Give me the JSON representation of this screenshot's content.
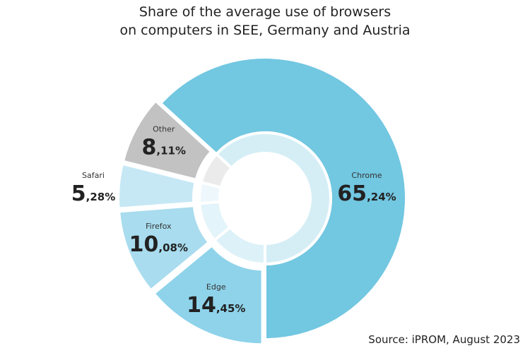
{
  "chart_data": {
    "type": "pie",
    "title_lines": [
      "Share of the average use of browsers",
      "on computers in SEE, Germany and Austria"
    ],
    "slices": [
      {
        "name": "Chrome",
        "value": 65.24,
        "int": "65",
        "dec": ",24%",
        "color": "#72c7e1",
        "inner_color": "#d5eef6"
      },
      {
        "name": "Edge",
        "value": 14.45,
        "int": "14",
        "dec": ",45%",
        "color": "#8ed3ea",
        "inner_color": "#ddf2f8"
      },
      {
        "name": "Firefox",
        "value": 10.08,
        "int": "10",
        "dec": ",08%",
        "color": "#a8dcee",
        "inner_color": "#e3f4fa"
      },
      {
        "name": "Safari",
        "value": 5.28,
        "int": "5",
        "dec": ",28%",
        "color": "#c6e8f4",
        "inner_color": "#eef8fc"
      },
      {
        "name": "Other",
        "value": 8.11,
        "int": "8",
        "dec": ",11%",
        "color": "#c2c2c2",
        "inner_color": "#ebebeb"
      }
    ],
    "legend": "none",
    "grid": false
  },
  "source": "Source: iPROM, August 2023"
}
